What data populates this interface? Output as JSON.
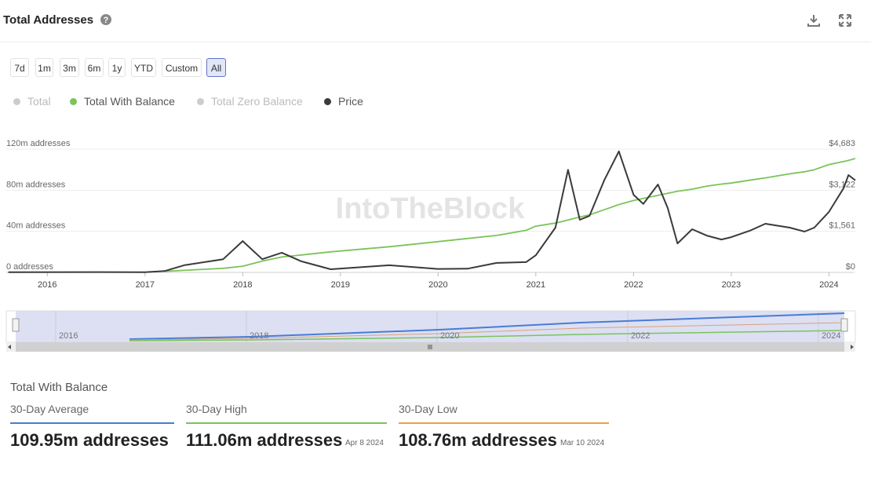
{
  "header": {
    "title": "Total Addresses"
  },
  "buttons": [
    {
      "label": "7d"
    },
    {
      "label": "1m"
    },
    {
      "label": "3m"
    },
    {
      "label": "6m"
    },
    {
      "label": "1y"
    },
    {
      "label": "YTD"
    },
    {
      "label": "Custom"
    },
    {
      "label": "All",
      "selected": true
    }
  ],
  "legend_inactive": [
    {
      "name": "Total",
      "color": "#cccccc"
    },
    {
      "name": "Total Zero Balance",
      "color": "#cccccc"
    }
  ],
  "watermark": "IntoTheBlock",
  "chart_data": {
    "type": "line",
    "x": [
      2015.6,
      2016.5,
      2017.0,
      2017.2,
      2017.4,
      2017.8,
      2018.0,
      2018.2,
      2018.4,
      2018.6,
      2018.9,
      2019.5,
      2020.0,
      2020.3,
      2020.6,
      2020.9,
      2021.0,
      2021.2,
      2021.33,
      2021.45,
      2021.55,
      2021.7,
      2021.85,
      2022.0,
      2022.1,
      2022.25,
      2022.35,
      2022.45,
      2022.6,
      2022.75,
      2022.9,
      2023.0,
      2023.2,
      2023.35,
      2023.6,
      2023.75,
      2023.85,
      2024.0,
      2024.15,
      2024.2,
      2024.27
    ],
    "series": [
      {
        "name": "Total With Balance",
        "color": "#7cc35a",
        "values": [
          null,
          null,
          null,
          1000000,
          2000000,
          4000000,
          6000000,
          11000000,
          15000000,
          17000000,
          20000000,
          25000000,
          30000000,
          33000000,
          36000000,
          41000000,
          45000000,
          48000000,
          51000000,
          54000000,
          56000000,
          61000000,
          66000000,
          70000000,
          72000000,
          75000000,
          77000000,
          79000000,
          81000000,
          84000000,
          86000000,
          87000000,
          90000000,
          92000000,
          96000000,
          98000000,
          100000000,
          105000000,
          108000000,
          109000000,
          111000000
        ]
      },
      {
        "name": "Price",
        "color": "#3a3a3c",
        "axis": "y2",
        "values": [
          5,
          12,
          10,
          50,
          270,
          500,
          1190,
          500,
          750,
          420,
          120,
          270,
          130,
          140,
          360,
          390,
          650,
          1700,
          3900,
          2000,
          2150,
          3500,
          4600,
          2950,
          2600,
          3340,
          2450,
          1100,
          1640,
          1400,
          1250,
          1340,
          1600,
          1850,
          1700,
          1550,
          1700,
          2300,
          3200,
          3700,
          3500
        ]
      }
    ],
    "xlim": [
      2015.58,
      2024.27
    ],
    "xticks": [
      2016,
      2017,
      2018,
      2019,
      2020,
      2021,
      2022,
      2023,
      2024
    ],
    "ylim": [
      0,
      120000000
    ],
    "yticks": [
      {
        "value": 0,
        "label": "0 addresses"
      },
      {
        "value": 40000000,
        "label": "40m addresses"
      },
      {
        "value": 80000000,
        "label": "80m addresses"
      },
      {
        "value": 120000000,
        "label": "120m addresses"
      }
    ],
    "y2lim": [
      0,
      4683
    ],
    "y2ticks": [
      {
        "value": 0,
        "label": "$0"
      },
      {
        "value": 1561,
        "label": "$1,561"
      },
      {
        "value": 3122,
        "label": "$3,122"
      },
      {
        "value": 4683,
        "label": "$4,683"
      }
    ],
    "grid": true
  },
  "navigator": {
    "labels": [
      "2016",
      "2018",
      "2020",
      "2022",
      "2024"
    ]
  },
  "stats": {
    "title": "Total With Balance",
    "cards": [
      {
        "label": "30-Day Average",
        "value": "109.95m addresses"
      },
      {
        "label": "30-Day High",
        "value": "111.06m addresses",
        "date": "Apr 8 2024"
      },
      {
        "label": "30-Day Low",
        "value": "108.76m addresses",
        "date": "Mar 10 2024"
      }
    ]
  }
}
